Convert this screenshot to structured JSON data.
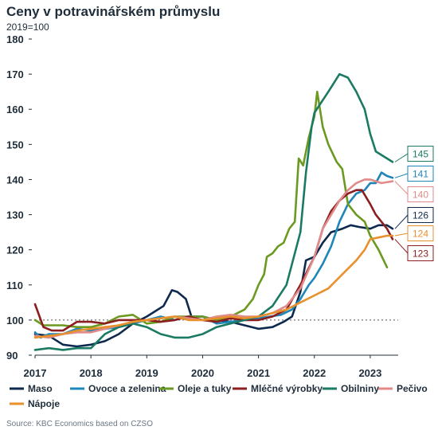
{
  "title": "Ceny v potravinářském průmyslu",
  "subtitle": "2019=100",
  "source": "Source: KBC Economics based on CZSO",
  "chart_data": {
    "type": "line",
    "ylim": [
      90,
      180
    ],
    "yticks": [
      90,
      100,
      110,
      120,
      130,
      140,
      150,
      160,
      170,
      180
    ],
    "xlim": [
      2017,
      2023.5
    ],
    "xticks": [
      {
        "x": 2017,
        "label": "2017"
      },
      {
        "x": 2018,
        "label": "2018"
      },
      {
        "x": 2019,
        "label": "2019"
      },
      {
        "x": 2020,
        "label": "2020"
      },
      {
        "x": 2021,
        "label": "2021"
      },
      {
        "x": 2022,
        "label": "2022"
      },
      {
        "x": 2023,
        "label": "2023"
      }
    ],
    "reference_line": 100,
    "series": [
      {
        "name": "Maso",
        "color": "#0d2a4e",
        "end_label": "126",
        "points": [
          [
            2017,
            96
          ],
          [
            2017.25,
            95.5
          ],
          [
            2017.5,
            93
          ],
          [
            2017.75,
            92.5
          ],
          [
            2018,
            93
          ],
          [
            2018.25,
            94
          ],
          [
            2018.5,
            96
          ],
          [
            2018.75,
            99
          ],
          [
            2019,
            101
          ],
          [
            2019.15,
            102.5
          ],
          [
            2019.3,
            104
          ],
          [
            2019.45,
            108.5
          ],
          [
            2019.55,
            108
          ],
          [
            2019.7,
            106
          ],
          [
            2019.8,
            101
          ],
          [
            2020,
            101
          ],
          [
            2020.25,
            100
          ],
          [
            2020.5,
            99.5
          ],
          [
            2020.75,
            98.5
          ],
          [
            2021,
            97.5
          ],
          [
            2021.25,
            98
          ],
          [
            2021.45,
            99.5
          ],
          [
            2021.6,
            101
          ],
          [
            2021.75,
            108
          ],
          [
            2021.85,
            117
          ],
          [
            2022,
            118
          ],
          [
            2022.15,
            122
          ],
          [
            2022.3,
            125
          ],
          [
            2022.5,
            126
          ],
          [
            2022.65,
            127
          ],
          [
            2022.8,
            126.5
          ],
          [
            2023,
            126
          ],
          [
            2023.15,
            127
          ],
          [
            2023.3,
            127
          ],
          [
            2023.4,
            126
          ]
        ]
      },
      {
        "name": "Ovoce a zelenina",
        "color": "#1f86b8",
        "end_label": "141",
        "points": [
          [
            2017,
            96.5
          ],
          [
            2017.1,
            95
          ],
          [
            2017.25,
            96
          ],
          [
            2017.5,
            96
          ],
          [
            2017.75,
            97.5
          ],
          [
            2018,
            97
          ],
          [
            2018.25,
            97.5
          ],
          [
            2018.5,
            98
          ],
          [
            2018.75,
            99
          ],
          [
            2019,
            100
          ],
          [
            2019.25,
            101
          ],
          [
            2019.5,
            100
          ],
          [
            2019.75,
            101
          ],
          [
            2020,
            101
          ],
          [
            2020.25,
            99
          ],
          [
            2020.5,
            99.5
          ],
          [
            2020.75,
            100
          ],
          [
            2021,
            100.5
          ],
          [
            2021.2,
            101
          ],
          [
            2021.4,
            101.5
          ],
          [
            2021.6,
            103
          ],
          [
            2021.75,
            106
          ],
          [
            2021.9,
            110
          ],
          [
            2022,
            112
          ],
          [
            2022.15,
            116
          ],
          [
            2022.3,
            121
          ],
          [
            2022.45,
            128
          ],
          [
            2022.6,
            133
          ],
          [
            2022.75,
            136
          ],
          [
            2022.9,
            137
          ],
          [
            2023,
            139
          ],
          [
            2023.1,
            139
          ],
          [
            2023.2,
            142
          ],
          [
            2023.3,
            141
          ],
          [
            2023.4,
            140.5
          ]
        ]
      },
      {
        "name": "Oleje a tuky",
        "color": "#6a9a1f",
        "end_label": "",
        "points": [
          [
            2017,
            100
          ],
          [
            2017.15,
            98.5
          ],
          [
            2017.5,
            98.5
          ],
          [
            2017.75,
            98
          ],
          [
            2018,
            98
          ],
          [
            2018.25,
            99
          ],
          [
            2018.5,
            101
          ],
          [
            2018.75,
            101.5
          ],
          [
            2019,
            99
          ],
          [
            2019.25,
            99.5
          ],
          [
            2019.5,
            101
          ],
          [
            2019.75,
            101
          ],
          [
            2020,
            101
          ],
          [
            2020.25,
            100
          ],
          [
            2020.5,
            101
          ],
          [
            2020.75,
            103
          ],
          [
            2020.9,
            106
          ],
          [
            2021,
            110
          ],
          [
            2021.1,
            113
          ],
          [
            2021.15,
            118
          ],
          [
            2021.25,
            119
          ],
          [
            2021.35,
            121
          ],
          [
            2021.45,
            122
          ],
          [
            2021.55,
            126
          ],
          [
            2021.65,
            128
          ],
          [
            2021.72,
            146
          ],
          [
            2021.8,
            144
          ],
          [
            2021.9,
            152
          ],
          [
            2022,
            158
          ],
          [
            2022.05,
            165
          ],
          [
            2022.15,
            155
          ],
          [
            2022.25,
            150
          ],
          [
            2022.4,
            145
          ],
          [
            2022.5,
            143
          ],
          [
            2022.6,
            133
          ],
          [
            2022.75,
            130
          ],
          [
            2022.9,
            128
          ],
          [
            2023,
            124
          ],
          [
            2023.15,
            120
          ],
          [
            2023.3,
            115
          ]
        ]
      },
      {
        "name": "Mléčné výrobky",
        "color": "#8b1e1e",
        "end_label": "123",
        "points": [
          [
            2017,
            104.5
          ],
          [
            2017.15,
            98
          ],
          [
            2017.3,
            97
          ],
          [
            2017.5,
            97
          ],
          [
            2017.75,
            99.5
          ],
          [
            2018,
            99.5
          ],
          [
            2018.25,
            99
          ],
          [
            2018.5,
            100
          ],
          [
            2018.75,
            100
          ],
          [
            2019,
            100
          ],
          [
            2019.25,
            99.5
          ],
          [
            2019.5,
            100
          ],
          [
            2019.75,
            101
          ],
          [
            2020,
            100
          ],
          [
            2020.25,
            99.5
          ],
          [
            2020.5,
            100.5
          ],
          [
            2020.75,
            100
          ],
          [
            2021,
            100
          ],
          [
            2021.25,
            101
          ],
          [
            2021.5,
            103
          ],
          [
            2021.75,
            110
          ],
          [
            2022,
            118
          ],
          [
            2022.15,
            126
          ],
          [
            2022.3,
            131
          ],
          [
            2022.45,
            134
          ],
          [
            2022.6,
            136
          ],
          [
            2022.75,
            137
          ],
          [
            2022.85,
            137
          ],
          [
            2023,
            133
          ],
          [
            2023.1,
            130
          ],
          [
            2023.2,
            128
          ],
          [
            2023.3,
            126
          ],
          [
            2023.4,
            123
          ]
        ]
      },
      {
        "name": "Obilniny",
        "color": "#1a7a62",
        "end_label": "145",
        "points": [
          [
            2017,
            91.5
          ],
          [
            2017.25,
            92
          ],
          [
            2017.5,
            91.5
          ],
          [
            2017.75,
            92
          ],
          [
            2018,
            92
          ],
          [
            2018.25,
            96
          ],
          [
            2018.5,
            98
          ],
          [
            2018.75,
            99
          ],
          [
            2019,
            98
          ],
          [
            2019.25,
            96
          ],
          [
            2019.5,
            95
          ],
          [
            2019.75,
            95
          ],
          [
            2020,
            96
          ],
          [
            2020.25,
            98
          ],
          [
            2020.5,
            99
          ],
          [
            2020.75,
            100
          ],
          [
            2021,
            101
          ],
          [
            2021.25,
            104
          ],
          [
            2021.5,
            110
          ],
          [
            2021.75,
            125
          ],
          [
            2021.85,
            142
          ],
          [
            2021.95,
            155
          ],
          [
            2022,
            159
          ],
          [
            2022.25,
            165
          ],
          [
            2022.45,
            170
          ],
          [
            2022.6,
            169
          ],
          [
            2022.75,
            165
          ],
          [
            2022.9,
            160
          ],
          [
            2023,
            153
          ],
          [
            2023.1,
            148
          ],
          [
            2023.2,
            147
          ],
          [
            2023.3,
            146
          ],
          [
            2023.4,
            145
          ]
        ]
      },
      {
        "name": "Pečivo",
        "color": "#e08a8a",
        "end_label": "140",
        "points": [
          [
            2017,
            95.5
          ],
          [
            2017.25,
            95
          ],
          [
            2017.5,
            96
          ],
          [
            2017.75,
            96.5
          ],
          [
            2018,
            96.5
          ],
          [
            2018.25,
            97.5
          ],
          [
            2018.5,
            98.5
          ],
          [
            2018.75,
            99.5
          ],
          [
            2019,
            100
          ],
          [
            2019.25,
            100.5
          ],
          [
            2019.5,
            101
          ],
          [
            2019.75,
            100.5
          ],
          [
            2020,
            100
          ],
          [
            2020.25,
            101
          ],
          [
            2020.5,
            101.5
          ],
          [
            2020.75,
            101
          ],
          [
            2021,
            101
          ],
          [
            2021.25,
            102
          ],
          [
            2021.5,
            104
          ],
          [
            2021.75,
            109
          ],
          [
            2022,
            118
          ],
          [
            2022.15,
            126
          ],
          [
            2022.3,
            130
          ],
          [
            2022.45,
            134
          ],
          [
            2022.6,
            137
          ],
          [
            2022.75,
            139
          ],
          [
            2022.9,
            140
          ],
          [
            2023,
            140
          ],
          [
            2023.2,
            139
          ],
          [
            2023.4,
            139.5
          ]
        ]
      },
      {
        "name": "Nápoje",
        "color": "#e8902c",
        "end_label": "124",
        "points": [
          [
            2017,
            95
          ],
          [
            2017.25,
            95.5
          ],
          [
            2017.5,
            96
          ],
          [
            2017.75,
            97
          ],
          [
            2018,
            97.5
          ],
          [
            2018.25,
            98
          ],
          [
            2018.5,
            98.5
          ],
          [
            2018.75,
            99.5
          ],
          [
            2019,
            100
          ],
          [
            2019.25,
            100.5
          ],
          [
            2019.5,
            101
          ],
          [
            2019.75,
            100
          ],
          [
            2020,
            100
          ],
          [
            2020.25,
            100.5
          ],
          [
            2020.5,
            101
          ],
          [
            2020.75,
            100.5
          ],
          [
            2021,
            101
          ],
          [
            2021.25,
            102
          ],
          [
            2021.5,
            103
          ],
          [
            2021.75,
            105
          ],
          [
            2022,
            107
          ],
          [
            2022.25,
            109
          ],
          [
            2022.5,
            113
          ],
          [
            2022.75,
            117
          ],
          [
            2022.9,
            120
          ],
          [
            2023,
            123
          ],
          [
            2023.15,
            123.5
          ],
          [
            2023.3,
            124
          ],
          [
            2023.4,
            124
          ]
        ]
      }
    ]
  }
}
